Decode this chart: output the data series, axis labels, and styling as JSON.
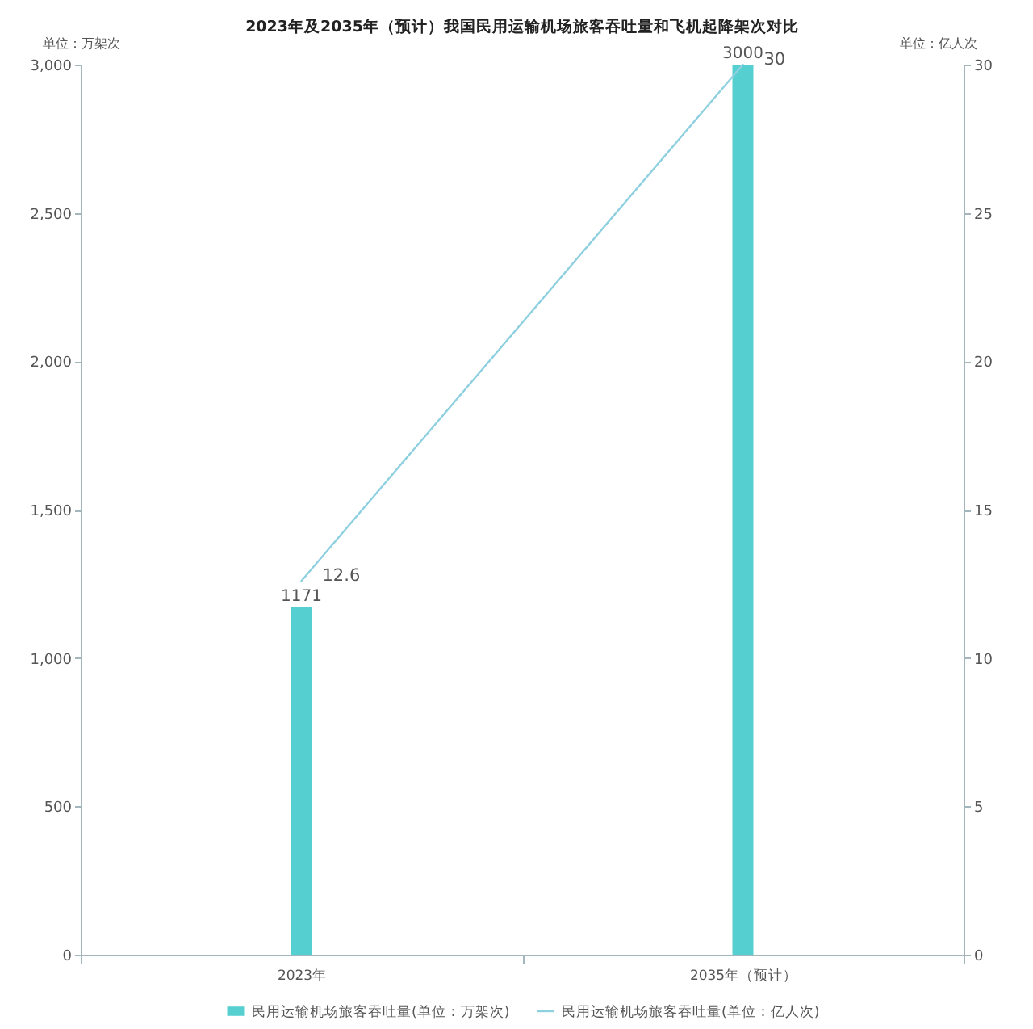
{
  "chart_data": {
    "type": "bar",
    "title": "2023年及2035年（预计）我国民用运输机场旅客吞吐量和飞机起降架次对比",
    "ylabel": "单位：万架次",
    "y2label": "单位：亿人次",
    "categories": [
      "2023年",
      "2035年（预计）"
    ],
    "series": [
      {
        "name": "民用运输机场旅客吞吐量(单位：万架次)",
        "color": "#56cfd0",
        "values": [
          1171,
          3000
        ]
      },
      {
        "name": "民用运输机场旅客吞吐量(单位：亿人次)",
        "type": "line",
        "axis": "y2",
        "color": "#8fd0e0",
        "values": [
          12.6,
          30
        ]
      }
    ],
    "ylim": [
      0,
      3000
    ],
    "yticks": [
      0,
      500,
      {
        "value": 1000,
        "label": "1,000"
      },
      {
        "value": 1500,
        "label": "1,500"
      },
      {
        "value": 2000,
        "label": "2,000"
      },
      {
        "value": 2500,
        "label": "2,500"
      },
      {
        "value": 3000,
        "label": "3,000"
      }
    ],
    "y2lim": [
      0,
      30
    ],
    "y2ticks": [
      0,
      5,
      10,
      15,
      20,
      25,
      30
    ],
    "data_labels": true,
    "legend": "bottom"
  }
}
